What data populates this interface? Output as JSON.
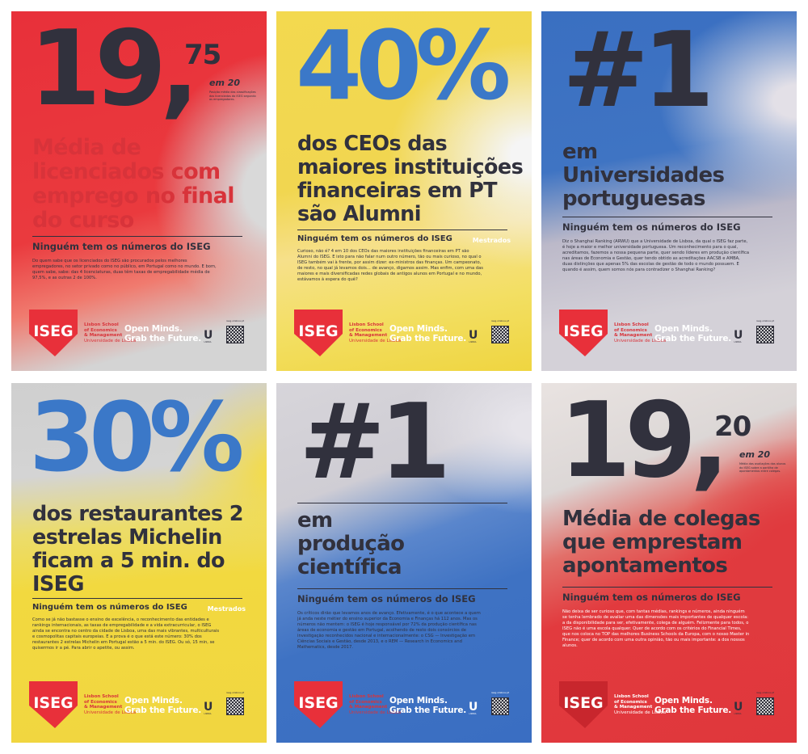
{
  "shared": {
    "tagline": "Ninguém tem os números do ISEG",
    "mestrados": "Mestrados",
    "logo_text": "ISEG",
    "school_line1": "Lisbon School",
    "school_line2": "of Economics",
    "school_line3": "& Management",
    "school_line4": "Universidade de Lisboa",
    "slogan_line1": "Open Minds.",
    "slogan_line2": "Grab the Future.",
    "ulisboa_mark": "U",
    "ulisboa_label": "LISBOA",
    "site": "iseg.ulisboa.pt",
    "colors": {
      "red": "#e8303a",
      "yellow": "#f2d94a",
      "blue": "#3b72c3",
      "dark": "#31313d",
      "grey": "#d4d4d4"
    }
  },
  "posters": [
    {
      "big": "19,",
      "sup": "75",
      "em20": "em 20",
      "note": "Posição média das classificações dos licenciados do ISEG segundo os empregadores.",
      "headline": "Média de licenciados com emprego no final do curso",
      "body": "Do quem sabe que os licenciados do ISEG são procurados pelos melhores empregadores, no setor privado como no público, em Portugal como no mundo. E bom, quem sabe, sabe: das 4 licenciaturas, duas têm taxas de empregabilidade média de 97,5%, e as outras 2 de 100%."
    },
    {
      "big": "40%",
      "headline": "dos CEOs das maiores instituições financeiras em PT são Alumni",
      "body": "Curioso, não é? 4 em 10 dos CEOs das maiores instituições financeiras em PT são Alumni do ISEG. E isto para não falar num outro número, tão ou mais curioso, no qual o ISEG também vai à frente, por assim dizer: ex-ministros das finanças. Um campeonato, de resto, no qual já levamos dois... de avanço, digamos assim. Mas enfim, com uma das maiores e mais diversificadas redes globais de antigos alunos em Portugal e no mundo, estávamos à espera do quê?"
    },
    {
      "big": "#1",
      "headline": "em Universidades portuguesas",
      "body": "Diz o Shanghai Ranking (ARWU) que a Universidade de Lisboa, da qual o ISEG faz parte, é hoje a maior e melhor universidade portuguesa. Um reconhecimento para o qual, acreditamos, fazemos a nossa pequena parte, quer sendo líderes em produção científica nas áreas de Economia e Gestão, quer tendo obtido as acreditações AACSB e AMBA, duas distinções que apenas 5% das escolas de gestão de todo o mundo possuem. E quando é assim, quem somos nós para contradizer o Shanghai Ranking?"
    },
    {
      "big": "30%",
      "headline": "dos restaurantes 2 estrelas Michelin ficam a  5 min. do ISEG",
      "body": "Como se já não bastasse o ensino de excelência, o reconhecimento das entidades e rankings internacionais, as taxas de empregabilidade e a vida extracurricular, o ISEG ainda se encontra no centro da cidade de Lisboa, uma das mais vibrantes, multiculturais e cosmopolitas capitais europeias. E a prova é o que está este número: 30% dos restaurantes 2 estrelas Michelin em Portugal estão a 5 min. do ISEG. Ou só, 15 min, se quisermos ir a pé. Para abrir o apetite, ou assim."
    },
    {
      "big": "#1",
      "headline": "em produção científica",
      "body": "Os críticos dirão que levamos anos de avanço. Efetivamente, é o que acontece a quem já anda neste métier do ensino superior da Economia e Finanças há 112 anos. Mas os números não mentem: o ISEG é hoje responsável por 72% da produção científica nas áreas de economia e gestão em Portugal, acolhendo de resto dois consórcios de investigação reconhecidos nacional e internacionalmente: o CSG — Investigação em Ciências Sociais e Gestão, desde 2013, e o REM — Research in Economics and Mathematics, desde 2017."
    },
    {
      "big": "19,",
      "sup": "20",
      "em20": "em 20",
      "note": "Média das avaliações dos alunos do ISEG sobre a partilha de apontamentos entre colegas.",
      "headline": "Média de colegas que emprestam apontamentos",
      "body": "Não deixa de ser curioso que, com tantas médias, rankings e números, ainda ninguém se tenha lembrado de avaliar uma das dimensões mais importantes de qualquer escola: a da disponibilidade para ser, efetivamente, colega de alguém. Felizmente para todos, o ISEG não é uma escola qualquer. Quer de acordo com os critérios do Financial Times, que nos coloca no TOP das melhores Business Schools da Europa, com o nosso Master in Finance; quer de acordo com uma outra opinião, tão ou mais importante: a dos nossos alunos."
    }
  ]
}
